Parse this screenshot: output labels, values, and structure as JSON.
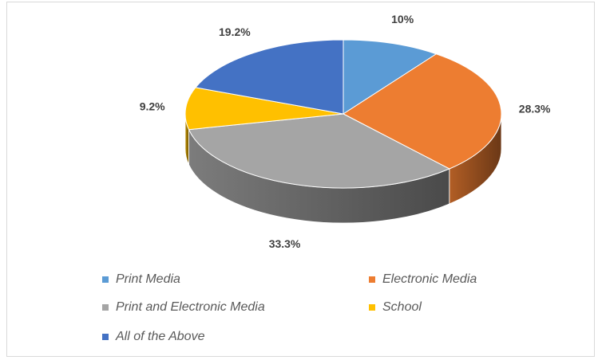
{
  "chart_data": {
    "type": "pie",
    "title": "",
    "three_d": true,
    "legend_position": "bottom",
    "slices": [
      {
        "label": "Print Media",
        "value": 10,
        "display": "10%",
        "color": "#5B9BD5"
      },
      {
        "label": "Electronic Media",
        "value": 28.3,
        "display": "28.3%",
        "color": "#ED7D31"
      },
      {
        "label": "Print and Electronic Media",
        "value": 33.3,
        "display": "33.3%",
        "color": "#A5A5A5"
      },
      {
        "label": "School",
        "value": 9.2,
        "display": "9.2%",
        "color": "#FFC000"
      },
      {
        "label": "All of the Above",
        "value": 19.2,
        "display": "19.2%",
        "color": "#4472C4"
      }
    ]
  }
}
